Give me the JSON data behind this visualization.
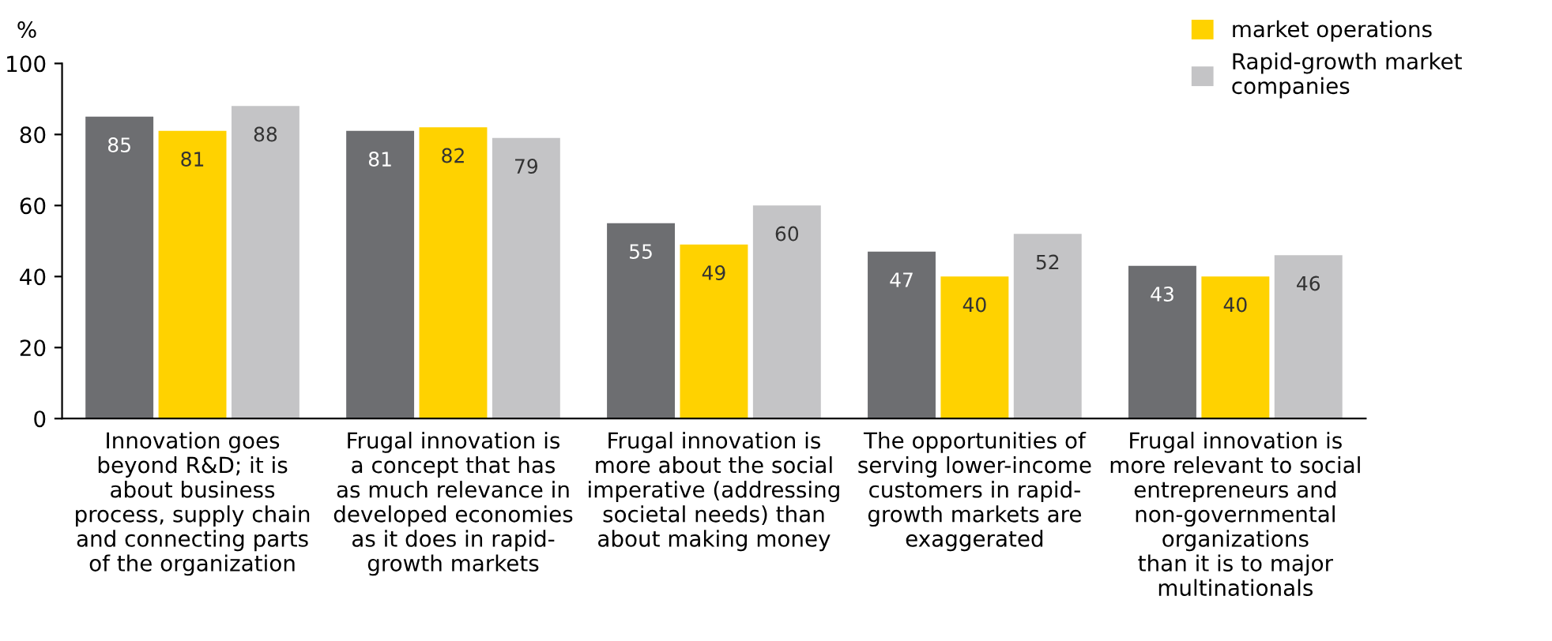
{
  "chart_data": {
    "type": "bar",
    "ylabel": "%",
    "categories": [
      "Innovation goes\nbeyond R&D; it is\nabout business\nprocess, supply chain\nand connecting parts\nof the organization",
      "Frugal innovation is\na concept that has\nas much relevance in\ndeveloped economies\nas it does in rapid-\ngrowth markets",
      "Frugal innovation is\nmore about the social\nimperative (addressing\nsocietal needs) than\nabout making money",
      "The opportunities of\nserving lower-income\ncustomers in rapid-\ngrowth markets are\nexaggerated",
      "Frugal innovation is\nmore relevant to social\nentrepreneurs and\nnon-governmental\norganizations\nthan it is to major\nmultinationals"
    ],
    "series": [
      {
        "color": "#6d6e71",
        "values": [
          85,
          81,
          55,
          47,
          43
        ]
      },
      {
        "name": "market operations",
        "color": "#ffd200",
        "values": [
          81,
          82,
          49,
          40,
          40
        ]
      },
      {
        "name": "Rapid-growth market\ncompanies",
        "color": "#c4c4c6",
        "values": [
          88,
          79,
          60,
          52,
          46
        ]
      }
    ],
    "ylim": [
      0,
      100
    ],
    "yticks": [
      0,
      20,
      40,
      60,
      80,
      100
    ],
    "grid": false,
    "legend": "top right",
    "data_labels": true
  }
}
